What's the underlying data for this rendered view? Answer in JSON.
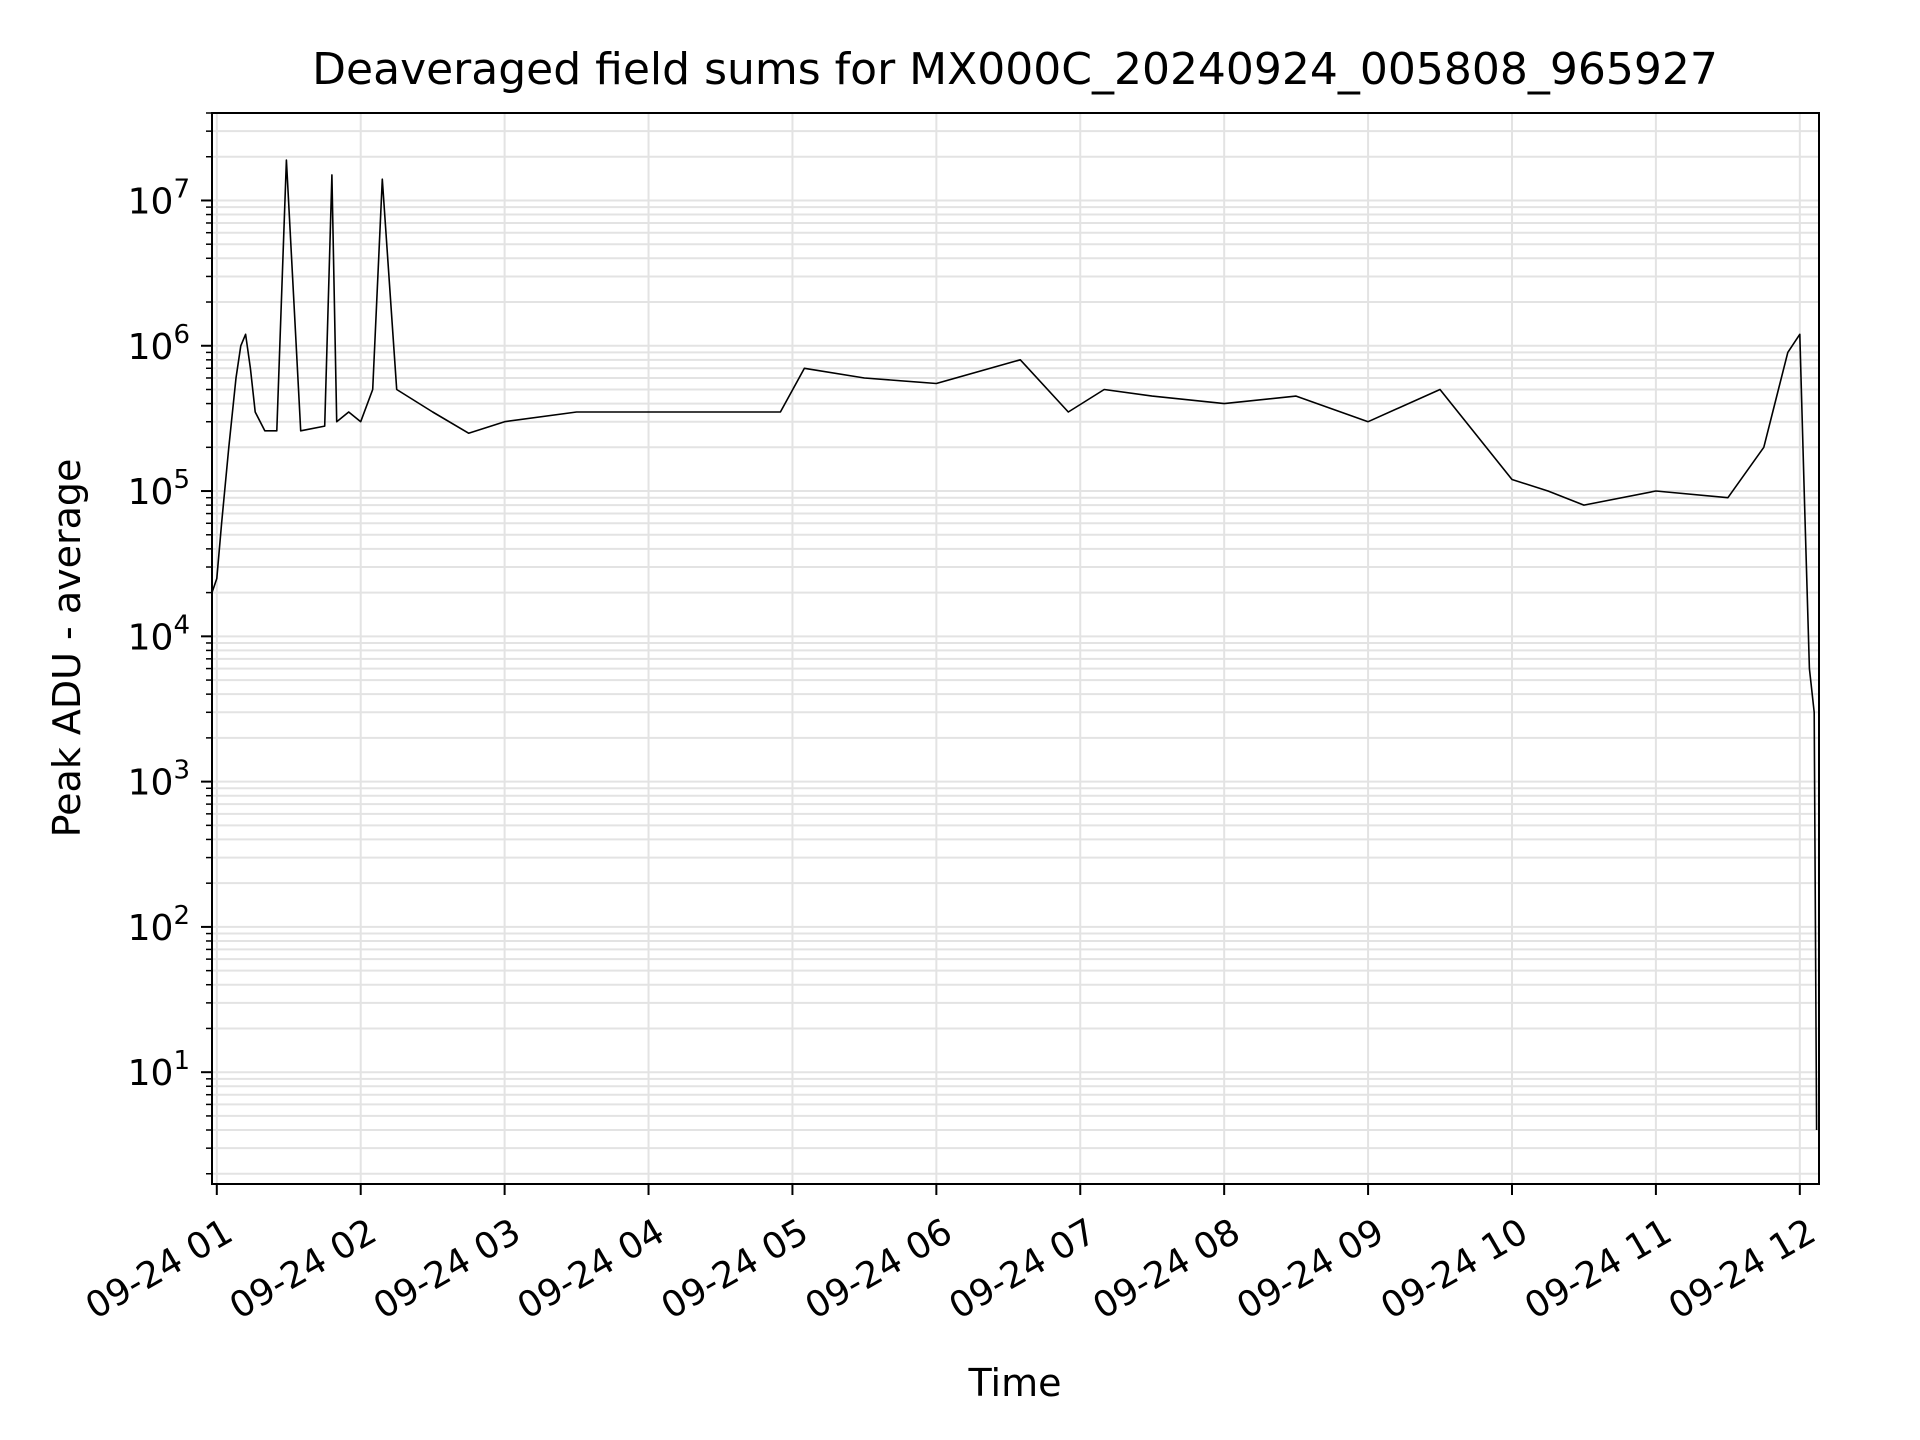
{
  "chart_data": {
    "type": "line",
    "title": "Deaveraged field sums for MX000C_20240924_005808_965927",
    "xlabel": "Time",
    "ylabel": "Peak ADU - average",
    "yscale": "log",
    "ylim": [
      1.7,
      40000000
    ],
    "xlim": [
      "2024-09-24 00:58",
      "2024-09-24 12:08"
    ],
    "grid": true,
    "x_tick_labels": [
      "09-24 01",
      "09-24 02",
      "09-24 03",
      "09-24 04",
      "09-24 05",
      "09-24 06",
      "09-24 07",
      "09-24 08",
      "09-24 09",
      "09-24 10",
      "09-24 11",
      "09-24 12"
    ],
    "x_ticks": [
      "2024-09-24 01:00",
      "2024-09-24 02:00",
      "2024-09-24 03:00",
      "2024-09-24 04:00",
      "2024-09-24 05:00",
      "2024-09-24 06:00",
      "2024-09-24 07:00",
      "2024-09-24 08:00",
      "2024-09-24 09:00",
      "2024-09-24 10:00",
      "2024-09-24 11:00",
      "2024-09-24 12:00"
    ],
    "y_tick_base": [
      "10",
      "10",
      "10",
      "10",
      "10",
      "10",
      "10"
    ],
    "y_tick_exp": [
      "1",
      "2",
      "3",
      "4",
      "5",
      "6",
      "7"
    ],
    "y_ticks": [
      10,
      100,
      1000,
      10000,
      100000,
      1000000,
      10000000
    ],
    "series": [
      {
        "color": "#000000",
        "x": [
          "2024-09-24 00:58",
          "2024-09-24 01:00",
          "2024-09-24 01:02",
          "2024-09-24 01:05",
          "2024-09-24 01:08",
          "2024-09-24 01:10",
          "2024-09-24 01:12",
          "2024-09-24 01:14",
          "2024-09-24 01:16",
          "2024-09-24 01:20",
          "2024-09-24 01:25",
          "2024-09-24 01:29",
          "2024-09-24 01:35",
          "2024-09-24 01:45",
          "2024-09-24 01:48",
          "2024-09-24 01:50",
          "2024-09-24 01:55",
          "2024-09-24 02:00",
          "2024-09-24 02:05",
          "2024-09-24 02:09",
          "2024-09-24 02:15",
          "2024-09-24 02:30",
          "2024-09-24 02:45",
          "2024-09-24 03:00",
          "2024-09-24 03:30",
          "2024-09-24 04:00",
          "2024-09-24 04:30",
          "2024-09-24 04:55",
          "2024-09-24 05:05",
          "2024-09-24 05:30",
          "2024-09-24 06:00",
          "2024-09-24 06:35",
          "2024-09-24 06:55",
          "2024-09-24 07:10",
          "2024-09-24 07:30",
          "2024-09-24 08:00",
          "2024-09-24 08:30",
          "2024-09-24 09:00",
          "2024-09-24 09:30",
          "2024-09-24 10:00",
          "2024-09-24 10:15",
          "2024-09-24 10:30",
          "2024-09-24 11:00",
          "2024-09-24 11:30",
          "2024-09-24 11:45",
          "2024-09-24 11:55",
          "2024-09-24 12:00",
          "2024-09-24 12:02",
          "2024-09-24 12:04",
          "2024-09-24 12:06",
          "2024-09-24 12:07"
        ],
        "values": [
          20000,
          25000,
          60000,
          200000,
          600000,
          1000000,
          1200000,
          700000,
          350000,
          260000,
          260000,
          19000000,
          260000,
          280000,
          15000000,
          300000,
          350000,
          300000,
          500000,
          14000000,
          500000,
          350000,
          250000,
          300000,
          350000,
          350000,
          350000,
          350000,
          700000,
          600000,
          550000,
          800000,
          350000,
          500000,
          450000,
          400000,
          450000,
          300000,
          500000,
          120000,
          100000,
          80000,
          100000,
          90000,
          200000,
          900000,
          1200000,
          80000,
          6000,
          3000,
          4
        ]
      }
    ]
  }
}
